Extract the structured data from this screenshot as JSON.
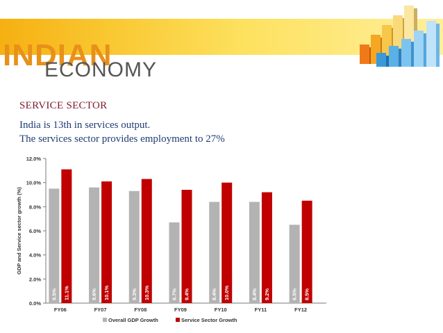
{
  "slide": {
    "logo_word1": "INDIAN",
    "logo_word2": "ECONOMY",
    "heading": "SERVICE SECTOR",
    "line1": "India is 13th in services output.",
    "line2": "The services sector provides employment to 27%"
  },
  "colors": {
    "banner": "#f9c832",
    "gdp_bar": "#b3b3b3",
    "service_bar": "#c00000",
    "heading": "#7a1a2a",
    "body_text": "#1f3b73"
  },
  "chart_data": {
    "type": "bar",
    "categories": [
      "FY06",
      "FY07",
      "FY08",
      "FY09",
      "FY10",
      "FY11",
      "FY12"
    ],
    "series": [
      {
        "name": "Overall GDP Growth",
        "values": [
          9.5,
          9.6,
          9.3,
          6.7,
          8.4,
          8.4,
          6.5
        ],
        "labels": [
          "9.5%",
          "9.6%",
          "9.3%",
          "6.7%",
          "8.4%",
          "8.4%",
          "6.5%"
        ]
      },
      {
        "name": "Service Sector Growth",
        "values": [
          11.1,
          10.1,
          10.3,
          9.4,
          10.0,
          9.2,
          8.5
        ],
        "labels": [
          "11.1%",
          "10.1%",
          "10.3%",
          "9.4%",
          "10.0%",
          "9.2%",
          "8.5%"
        ]
      }
    ],
    "ylabel": "GDP and Service sector growth (%)",
    "ylim": [
      0,
      12
    ],
    "yticks": [
      "0.0%",
      "2.0%",
      "4.0%",
      "6.0%",
      "8.0%",
      "10.0%",
      "12.0%"
    ],
    "grid": false,
    "legend": "bottom"
  }
}
